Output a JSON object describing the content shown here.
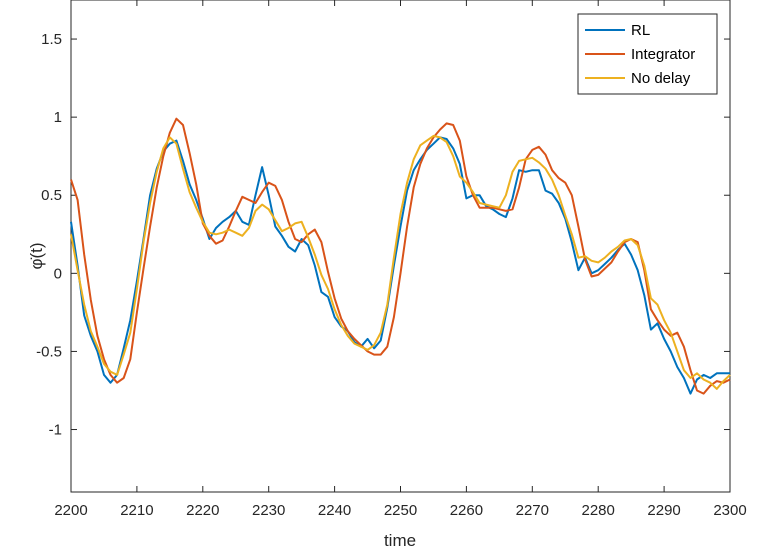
{
  "chart_data": {
    "type": "line",
    "xlabel": "time",
    "ylabel": "φ̇(t)",
    "xlim": [
      2200,
      2300
    ],
    "ylim": [
      -1.4,
      1.75
    ],
    "xticks": [
      2200,
      2210,
      2220,
      2230,
      2240,
      2250,
      2260,
      2270,
      2280,
      2290,
      2300
    ],
    "yticks": [
      -1,
      -0.5,
      0,
      0.5,
      1,
      1.5
    ],
    "ytick_labels": [
      "-1",
      "-0.5",
      "0",
      "0.5",
      "1",
      "1.5"
    ],
    "grid": false,
    "legend_position": "top-right",
    "series": [
      {
        "name": "RL",
        "color": "#0072bd",
        "x": [
          2200,
          2201,
          2202,
          2203,
          2204,
          2205,
          2206,
          2207,
          2208,
          2209,
          2210,
          2211,
          2212,
          2213,
          2214,
          2215,
          2216,
          2217,
          2218,
          2219,
          2220,
          2221,
          2222,
          2223,
          2224,
          2225,
          2226,
          2227,
          2228,
          2229,
          2230,
          2231,
          2232,
          2233,
          2234,
          2235,
          2236,
          2237,
          2238,
          2239,
          2240,
          2241,
          2242,
          2243,
          2244,
          2245,
          2246,
          2247,
          2248,
          2249,
          2250,
          2251,
          2252,
          2253,
          2254,
          2255,
          2256,
          2257,
          2258,
          2259,
          2260,
          2261,
          2262,
          2263,
          2264,
          2265,
          2266,
          2267,
          2268,
          2269,
          2270,
          2271,
          2272,
          2273,
          2274,
          2275,
          2276,
          2277,
          2278,
          2279,
          2280,
          2281,
          2282,
          2283,
          2284,
          2285,
          2286,
          2287,
          2288,
          2289,
          2290,
          2291,
          2292,
          2293,
          2294,
          2295,
          2296,
          2297,
          2298,
          2299,
          2300
        ],
        "values": [
          0.33,
          0.05,
          -0.27,
          -0.4,
          -0.5,
          -0.65,
          -0.7,
          -0.65,
          -0.48,
          -0.3,
          -0.05,
          0.22,
          0.5,
          0.67,
          0.78,
          0.83,
          0.85,
          0.72,
          0.57,
          0.47,
          0.35,
          0.22,
          0.29,
          0.33,
          0.36,
          0.4,
          0.33,
          0.31,
          0.5,
          0.68,
          0.5,
          0.3,
          0.24,
          0.17,
          0.14,
          0.22,
          0.18,
          0.05,
          -0.12,
          -0.15,
          -0.28,
          -0.34,
          -0.37,
          -0.44,
          -0.47,
          -0.42,
          -0.48,
          -0.43,
          -0.22,
          0.05,
          0.3,
          0.53,
          0.66,
          0.73,
          0.79,
          0.83,
          0.87,
          0.86,
          0.8,
          0.7,
          0.48,
          0.5,
          0.5,
          0.43,
          0.41,
          0.38,
          0.36,
          0.48,
          0.66,
          0.65,
          0.66,
          0.66,
          0.53,
          0.51,
          0.45,
          0.35,
          0.2,
          0.02,
          0.1,
          0.0,
          0.02,
          0.06,
          0.1,
          0.15,
          0.19,
          0.12,
          0.02,
          -0.14,
          -0.36,
          -0.32,
          -0.42,
          -0.5,
          -0.6,
          -0.67,
          -0.77,
          -0.68,
          -0.65,
          -0.67,
          -0.64,
          -0.64,
          -0.64
        ]
      },
      {
        "name": "Integrator",
        "color": "#d95319",
        "x": [
          2200,
          2201,
          2202,
          2203,
          2204,
          2205,
          2206,
          2207,
          2208,
          2209,
          2210,
          2211,
          2212,
          2213,
          2214,
          2215,
          2216,
          2217,
          2218,
          2219,
          2220,
          2221,
          2222,
          2223,
          2224,
          2225,
          2226,
          2227,
          2228,
          2229,
          2230,
          2231,
          2232,
          2233,
          2234,
          2235,
          2236,
          2237,
          2238,
          2239,
          2240,
          2241,
          2242,
          2243,
          2244,
          2245,
          2246,
          2247,
          2248,
          2249,
          2250,
          2251,
          2252,
          2253,
          2254,
          2255,
          2256,
          2257,
          2258,
          2259,
          2260,
          2261,
          2262,
          2263,
          2264,
          2265,
          2266,
          2267,
          2268,
          2269,
          2270,
          2271,
          2272,
          2273,
          2274,
          2275,
          2276,
          2277,
          2278,
          2279,
          2280,
          2281,
          2282,
          2283,
          2284,
          2285,
          2286,
          2287,
          2288,
          2289,
          2290,
          2291,
          2292,
          2293,
          2294,
          2295,
          2296,
          2297,
          2298,
          2299,
          2300
        ],
        "values": [
          0.6,
          0.47,
          0.12,
          -0.17,
          -0.4,
          -0.55,
          -0.65,
          -0.7,
          -0.67,
          -0.55,
          -0.25,
          0.03,
          0.3,
          0.55,
          0.75,
          0.9,
          0.99,
          0.95,
          0.77,
          0.57,
          0.32,
          0.24,
          0.19,
          0.21,
          0.3,
          0.4,
          0.49,
          0.47,
          0.45,
          0.52,
          0.58,
          0.56,
          0.47,
          0.33,
          0.22,
          0.2,
          0.25,
          0.28,
          0.2,
          0.01,
          -0.16,
          -0.29,
          -0.37,
          -0.42,
          -0.46,
          -0.5,
          -0.52,
          -0.52,
          -0.47,
          -0.28,
          0.0,
          0.3,
          0.55,
          0.7,
          0.8,
          0.87,
          0.92,
          0.96,
          0.95,
          0.85,
          0.62,
          0.5,
          0.42,
          0.42,
          0.42,
          0.41,
          0.4,
          0.41,
          0.55,
          0.73,
          0.79,
          0.81,
          0.76,
          0.66,
          0.61,
          0.58,
          0.5,
          0.3,
          0.09,
          -0.02,
          -0.01,
          0.03,
          0.07,
          0.14,
          0.2,
          0.22,
          0.2,
          0.02,
          -0.23,
          -0.3,
          -0.36,
          -0.4,
          -0.38,
          -0.47,
          -0.62,
          -0.75,
          -0.77,
          -0.72,
          -0.69,
          -0.7,
          -0.68
        ]
      },
      {
        "name": "No delay",
        "color": "#edb120",
        "x": [
          2200,
          2201,
          2202,
          2203,
          2204,
          2205,
          2206,
          2207,
          2208,
          2209,
          2210,
          2211,
          2212,
          2213,
          2214,
          2215,
          2216,
          2217,
          2218,
          2219,
          2220,
          2221,
          2222,
          2223,
          2224,
          2225,
          2226,
          2227,
          2228,
          2229,
          2230,
          2231,
          2232,
          2233,
          2234,
          2235,
          2236,
          2237,
          2238,
          2239,
          2240,
          2241,
          2242,
          2243,
          2244,
          2245,
          2246,
          2247,
          2248,
          2249,
          2250,
          2251,
          2252,
          2253,
          2254,
          2255,
          2256,
          2257,
          2258,
          2259,
          2260,
          2261,
          2262,
          2263,
          2264,
          2265,
          2266,
          2267,
          2268,
          2269,
          2270,
          2271,
          2272,
          2273,
          2274,
          2275,
          2276,
          2277,
          2278,
          2279,
          2280,
          2281,
          2282,
          2283,
          2284,
          2285,
          2286,
          2287,
          2288,
          2289,
          2290,
          2291,
          2292,
          2293,
          2294,
          2295,
          2296,
          2297,
          2298,
          2299,
          2300
        ],
        "values": [
          0.25,
          0.02,
          -0.2,
          -0.37,
          -0.47,
          -0.58,
          -0.63,
          -0.65,
          -0.52,
          -0.38,
          -0.1,
          0.2,
          0.45,
          0.65,
          0.8,
          0.87,
          0.83,
          0.67,
          0.52,
          0.42,
          0.33,
          0.26,
          0.25,
          0.26,
          0.28,
          0.26,
          0.24,
          0.29,
          0.4,
          0.44,
          0.41,
          0.34,
          0.27,
          0.29,
          0.32,
          0.33,
          0.23,
          0.12,
          -0.01,
          -0.1,
          -0.23,
          -0.33,
          -0.4,
          -0.45,
          -0.47,
          -0.49,
          -0.46,
          -0.38,
          -0.2,
          0.1,
          0.38,
          0.58,
          0.73,
          0.82,
          0.85,
          0.88,
          0.87,
          0.84,
          0.75,
          0.62,
          0.58,
          0.52,
          0.45,
          0.44,
          0.43,
          0.42,
          0.5,
          0.65,
          0.72,
          0.73,
          0.74,
          0.71,
          0.67,
          0.6,
          0.5,
          0.37,
          0.25,
          0.1,
          0.11,
          0.08,
          0.07,
          0.1,
          0.14,
          0.17,
          0.21,
          0.22,
          0.18,
          0.05,
          -0.16,
          -0.2,
          -0.3,
          -0.38,
          -0.5,
          -0.62,
          -0.67,
          -0.64,
          -0.68,
          -0.7,
          -0.74,
          -0.69,
          -0.65
        ]
      }
    ]
  }
}
